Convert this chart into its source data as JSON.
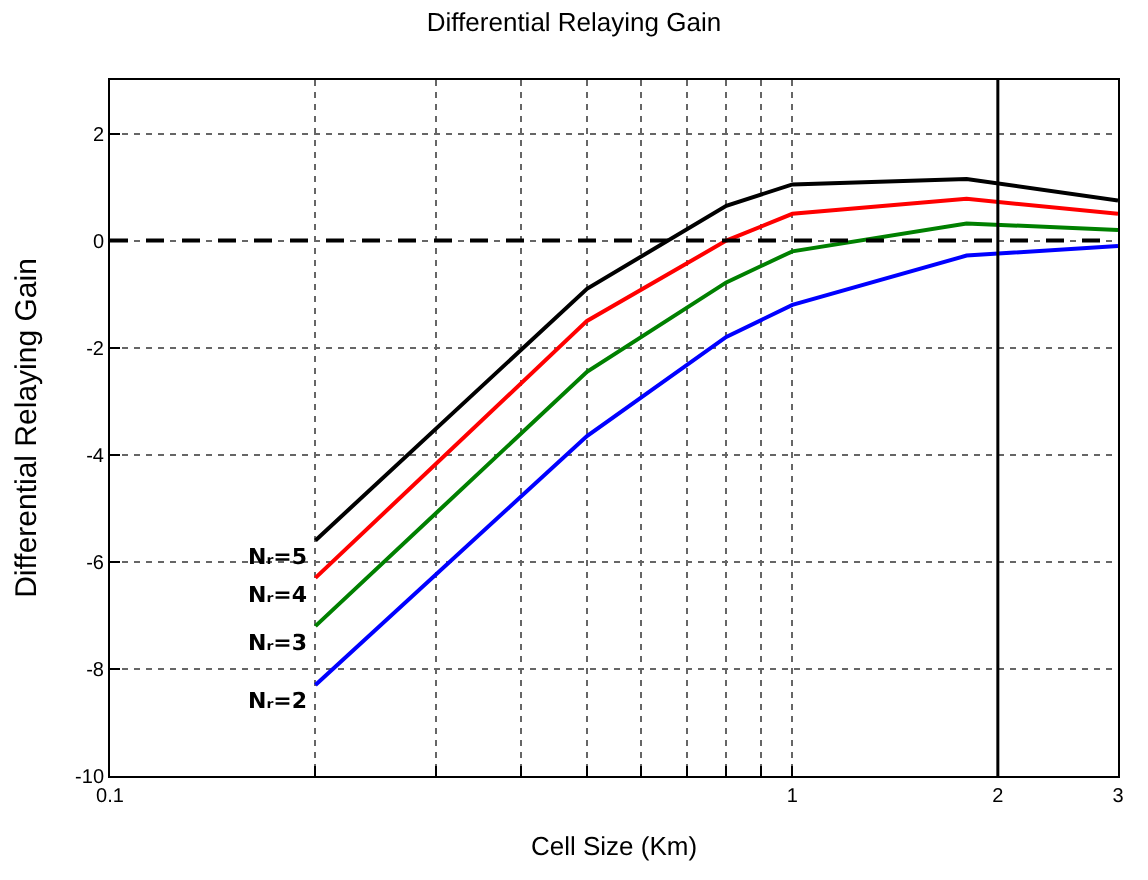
{
  "chart_data": {
    "type": "line",
    "title": "Differential Relaying Gain",
    "xlabel": "Cell Size (Km)",
    "ylabel": "Differential Relaying Gain",
    "x": [
      0.2,
      0.5,
      0.8,
      1.0,
      1.8,
      3.0
    ],
    "series": [
      {
        "name": "Nᵣ=5",
        "color": "#000000",
        "values": [
          -5.6,
          -0.9,
          0.65,
          1.05,
          1.15,
          0.75
        ]
      },
      {
        "name": "Nᵣ=4",
        "color": "#ff0000",
        "values": [
          -6.3,
          -1.5,
          0.0,
          0.5,
          0.78,
          0.5
        ]
      },
      {
        "name": "Nᵣ=3",
        "color": "#008000",
        "values": [
          -7.2,
          -2.45,
          -0.78,
          -0.2,
          0.32,
          0.2
        ]
      },
      {
        "name": "Nᵣ=2",
        "color": "#0000ff",
        "values": [
          -8.3,
          -3.65,
          -1.8,
          -1.2,
          -0.28,
          -0.1
        ]
      }
    ],
    "ref_lines": [
      {
        "axis": "y",
        "value": 0,
        "line_style": "dashed",
        "color": "#000000"
      },
      {
        "axis": "x",
        "value": 2,
        "line_style": "solid",
        "color": "#000000"
      }
    ],
    "log": "x",
    "xlim": [
      0.1,
      3
    ],
    "xticks": [
      0.1,
      {
        "value": 0.2,
        "label": null
      },
      {
        "value": 0.3,
        "label": null
      },
      {
        "value": 0.4,
        "label": null
      },
      {
        "value": 0.5,
        "label": null
      },
      {
        "value": 0.6,
        "label": null
      },
      {
        "value": 0.7,
        "label": null
      },
      {
        "value": 0.8,
        "label": null
      },
      {
        "value": 0.9,
        "label": null
      },
      1,
      2,
      3
    ],
    "ylim": [
      -10,
      3
    ],
    "yticks": [
      -10,
      -8,
      -6,
      -4,
      -2,
      0,
      2
    ],
    "grid": true,
    "marker": "none",
    "line_style": "solid"
  }
}
